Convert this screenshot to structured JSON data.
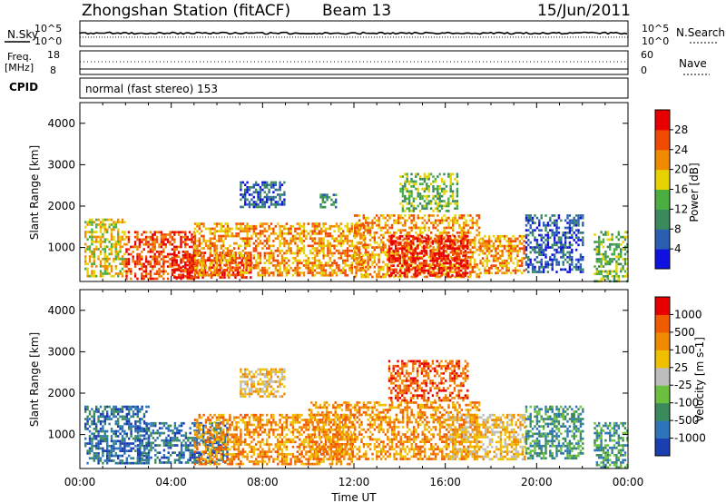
{
  "header": {
    "station": "Zhongshan Station (fitACF)",
    "beam": "Beam 13",
    "date": "15/Jun/2011"
  },
  "upper_panels": {
    "nsky_label": "N.Sky",
    "nsky_ticks": [
      "10^5",
      "10^0"
    ],
    "nsearch_label": "N.Search",
    "nsearch_ticks": [
      "10^5",
      "10^0"
    ],
    "freq_label_1": "Freq.",
    "freq_label_2": "[MHz]",
    "freq_ticks": [
      "18",
      "8"
    ],
    "nave_label": "Nave",
    "nave_ticks": [
      "60",
      "0"
    ],
    "cpid_label": "CPID",
    "cpid_text": "normal (fast stereo) 153"
  },
  "x_axis": {
    "label": "Time UT",
    "ticks": [
      "00:00",
      "04:00",
      "08:00",
      "12:00",
      "16:00",
      "20:00",
      "00:00"
    ]
  },
  "chart_data": [
    {
      "type": "heatmap",
      "panel": "power",
      "ylabel": "Slant Range [km]",
      "xlim_hours": [
        0,
        24
      ],
      "ylim_km": [
        180,
        4500
      ],
      "y_ticks": [
        1000,
        2000,
        3000,
        4000
      ],
      "colorbar": {
        "label": "Power [dB]",
        "ticks": [
          "4",
          "8",
          "12",
          "16",
          "20",
          "24",
          "28"
        ],
        "colors": [
          "#1010e0",
          "#2a5fb0",
          "#3a8a5c",
          "#4aae40",
          "#e6d200",
          "#f08a00",
          "#f04a00",
          "#e80000"
        ]
      },
      "regions": [
        {
          "t": [
            0.2,
            2.0
          ],
          "r": [
            280,
            1700
          ],
          "level": 4
        },
        {
          "t": [
            2.0,
            5.0
          ],
          "r": [
            250,
            1400
          ],
          "level": 6
        },
        {
          "t": [
            4.0,
            7.5
          ],
          "r": [
            300,
            900
          ],
          "level": 7
        },
        {
          "t": [
            5.0,
            12.5
          ],
          "r": [
            300,
            1600
          ],
          "level": 5
        },
        {
          "t": [
            7.0,
            9.0
          ],
          "r": [
            1950,
            2600
          ],
          "level": 1
        },
        {
          "t": [
            10.5,
            11.2
          ],
          "r": [
            2000,
            2300
          ],
          "level": 2
        },
        {
          "t": [
            12.0,
            17.5
          ],
          "r": [
            300,
            1800
          ],
          "level": 5
        },
        {
          "t": [
            13.5,
            17.0
          ],
          "r": [
            350,
            1300
          ],
          "level": 7
        },
        {
          "t": [
            14.0,
            16.5
          ],
          "r": [
            1900,
            2800
          ],
          "level": 3
        },
        {
          "t": [
            17.5,
            19.5
          ],
          "r": [
            400,
            1300
          ],
          "level": 5
        },
        {
          "t": [
            19.5,
            22.0
          ],
          "r": [
            400,
            1800
          ],
          "level": 1
        },
        {
          "t": [
            22.5,
            24.0
          ],
          "r": [
            200,
            1400
          ],
          "level": 3
        }
      ]
    },
    {
      "type": "heatmap",
      "panel": "velocity",
      "ylabel": "Slant Range [km]",
      "xlim_hours": [
        0,
        24
      ],
      "ylim_km": [
        180,
        4500
      ],
      "y_ticks": [
        1000,
        2000,
        3000,
        4000
      ],
      "colorbar": {
        "label": "Velocity [m s-1]",
        "ticks": [
          "1000",
          "500",
          "100",
          "25",
          "-25",
          "-100",
          "-500",
          "-1000"
        ],
        "colors": [
          "#1a3fb0",
          "#2e74b8",
          "#3a8a5c",
          "#6cc040",
          "#bdbdbd",
          "#f0c000",
          "#f08a00",
          "#f05a00",
          "#e80000"
        ]
      },
      "regions": [
        {
          "t": [
            0.2,
            3.0
          ],
          "r": [
            280,
            1700
          ],
          "level": 1
        },
        {
          "t": [
            2.5,
            6.5
          ],
          "r": [
            300,
            1300
          ],
          "level": 1
        },
        {
          "t": [
            5.0,
            12.0
          ],
          "r": [
            300,
            1500
          ],
          "level": 6
        },
        {
          "t": [
            7.0,
            9.0
          ],
          "r": [
            1900,
            2600
          ],
          "level": 5
        },
        {
          "t": [
            10.0,
            17.5
          ],
          "r": [
            400,
            1800
          ],
          "level": 6
        },
        {
          "t": [
            13.5,
            17.0
          ],
          "r": [
            1800,
            2800
          ],
          "level": 7
        },
        {
          "t": [
            16.0,
            19.5
          ],
          "r": [
            400,
            1500
          ],
          "level": 5
        },
        {
          "t": [
            19.5,
            22.0
          ],
          "r": [
            400,
            1700
          ],
          "level": 2
        },
        {
          "t": [
            22.5,
            24.0
          ],
          "r": [
            200,
            1300
          ],
          "level": 2
        }
      ]
    }
  ]
}
